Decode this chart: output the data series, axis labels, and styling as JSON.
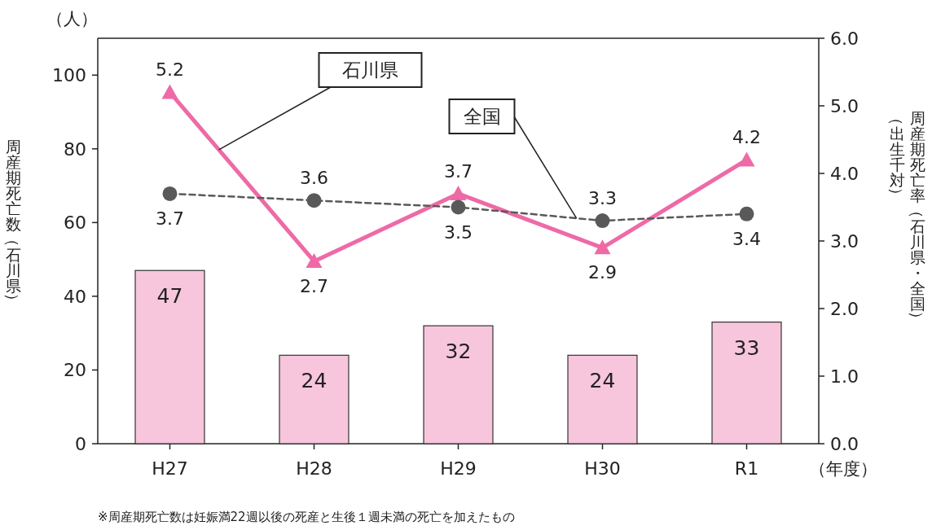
{
  "chart_data": {
    "type": "bar",
    "categories": [
      "H27",
      "H28",
      "H29",
      "H30",
      "R1"
    ],
    "ylabel": "周産期死亡数（石川県）",
    "y2label": "周産期死亡率（石川県・全国）",
    "ylim": [
      0,
      110
    ],
    "yticks": [
      0,
      20,
      40,
      60,
      80,
      100
    ],
    "y2lim": [
      0,
      6
    ],
    "y2ticks": [
      {
        "value": 0,
        "label": "0.0"
      },
      {
        "value": 1,
        "label": "1.0"
      },
      {
        "value": 2,
        "label": "2.0"
      },
      {
        "value": 3,
        "label": "3.0"
      },
      {
        "value": 4,
        "label": "4.0"
      },
      {
        "value": 5,
        "label": "5.0"
      },
      {
        "value": 6,
        "label": "6.0"
      }
    ],
    "data_labels": true,
    "legend": false,
    "grid": false,
    "annotations": [
      "（人）",
      "（年度）",
      "※周産期死亡数は妊娠満22週以後の死産と生後１週未満の死亡を加えたもの",
      "（出生千対）"
    ],
    "series": [
      {
        "color": "#f7c6dc",
        "values": [
          47,
          24,
          32,
          24,
          33
        ]
      },
      {
        "type": "line",
        "name": "石川県",
        "axis": "y2",
        "color": "#ee6aa7",
        "marker": "triangle",
        "line_style": "solid",
        "values": [
          5.2,
          2.7,
          3.7,
          2.9,
          4.2
        ]
      },
      {
        "type": "line",
        "name": "全国",
        "axis": "y2",
        "color": "#595959",
        "marker": "circle",
        "line_style": "dashed",
        "values": [
          3.7,
          3.6,
          3.5,
          3.3,
          3.4
        ]
      }
    ]
  }
}
